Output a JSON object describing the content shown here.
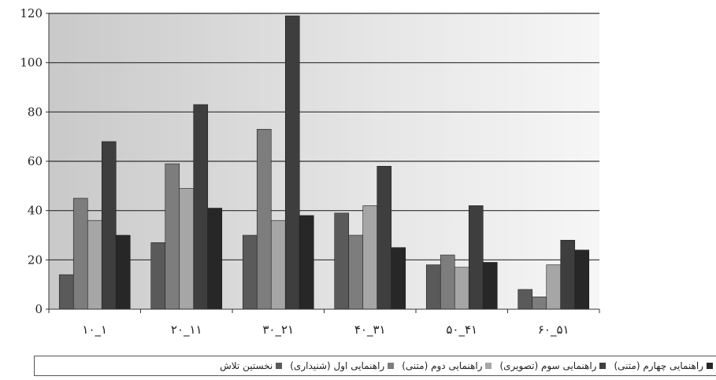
{
  "chart_data": {
    "type": "bar",
    "categories": [
      "۱۰_۱",
      "۲۰_۱۱",
      "۳۰_۲۱",
      "۴۰_۳۱",
      "۵۰_۴۱",
      "۶۰_۵۱"
    ],
    "series": [
      {
        "name": "نخستین تلاش",
        "color": "#5a5a5a",
        "values": [
          14,
          27,
          30,
          39,
          18,
          8
        ]
      },
      {
        "name": "راهنمایی اول (شنیداری)",
        "color": "#7d7d7d",
        "values": [
          45,
          59,
          73,
          30,
          22,
          5
        ]
      },
      {
        "name": "راهنمایی دوم (متنی)",
        "color": "#a6a6a6",
        "values": [
          36,
          49,
          36,
          42,
          17,
          18
        ]
      },
      {
        "name": "راهنمایی سوم (تصویری)",
        "color": "#3e3e3e",
        "values": [
          68,
          83,
          119,
          58,
          42,
          28
        ]
      },
      {
        "name": "راهنمایی چهارم (متنی)",
        "color": "#272727",
        "values": [
          30,
          41,
          38,
          25,
          19,
          24
        ]
      }
    ],
    "title": "",
    "xlabel": "",
    "ylabel": "",
    "ylim": [
      0,
      120
    ],
    "yticks": [
      "0",
      "20",
      "40",
      "60",
      "80",
      "100",
      "120"
    ],
    "grid": true,
    "legend_position": "bottom"
  }
}
